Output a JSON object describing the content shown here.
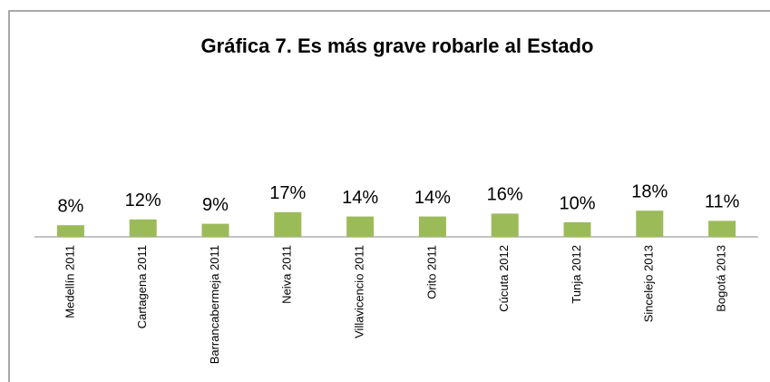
{
  "chart_data": {
    "type": "bar",
    "title": "Gráfica 7. Es más grave robarle al Estado",
    "categories": [
      "Medellín 2011",
      "Cartagena 2011",
      "Barrancabermeja 2011",
      "Neiva 2011",
      "Villavicencio 2011",
      "Orito 2011",
      "Cúcuta 2012",
      "Tunja 2012",
      "Sincelejo 2013",
      "Bogotá 2013"
    ],
    "values": [
      8,
      12,
      9,
      17,
      14,
      14,
      16,
      10,
      18,
      11
    ],
    "value_labels": [
      "8%",
      "12%",
      "9%",
      "17%",
      "14%",
      "14%",
      "16%",
      "10%",
      "18%",
      "11%"
    ],
    "color": "#9bbb59"
  }
}
